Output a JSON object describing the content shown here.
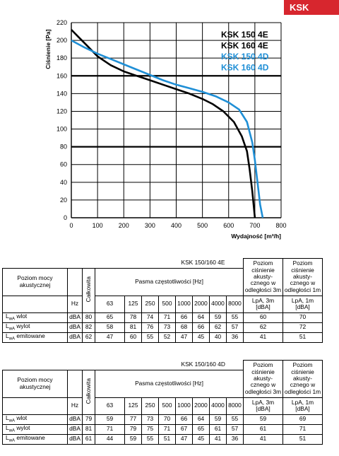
{
  "header": {
    "badge": "KSK"
  },
  "chart_data": {
    "type": "line",
    "xlabel": "Wydajność [m³/h]",
    "ylabel": "Ciśnienie [Pa]",
    "xlim": [
      0,
      800
    ],
    "ylim": [
      0,
      220
    ],
    "xticks": [
      "0",
      "100",
      "200",
      "300",
      "400",
      "500",
      "600",
      "700",
      "800"
    ],
    "yticks": [
      "0",
      "20",
      "40",
      "60",
      "80",
      "100",
      "120",
      "140",
      "160",
      "180",
      "200",
      "220"
    ],
    "grid": true,
    "legend_position": "top-right",
    "series": [
      {
        "name": "KSK 150 4E",
        "color": "#000000",
        "points": [
          [
            0,
            212
          ],
          [
            30,
            203
          ],
          [
            60,
            194
          ],
          [
            100,
            182
          ],
          [
            150,
            172
          ],
          [
            200,
            165
          ],
          [
            250,
            160
          ],
          [
            300,
            155
          ],
          [
            350,
            150
          ],
          [
            400,
            145
          ],
          [
            450,
            140
          ],
          [
            500,
            134
          ],
          [
            540,
            128
          ],
          [
            580,
            120
          ],
          [
            620,
            108
          ],
          [
            650,
            92
          ],
          [
            670,
            75
          ],
          [
            680,
            55
          ],
          [
            690,
            30
          ],
          [
            700,
            0
          ]
        ]
      },
      {
        "name": "KSK 160 4E",
        "color": "#000000",
        "points": []
      },
      {
        "name": "KSK 150 4D",
        "color": "#1f8fd6",
        "points": [
          [
            0,
            200
          ],
          [
            50,
            192
          ],
          [
            100,
            185
          ],
          [
            150,
            179
          ],
          [
            200,
            173
          ],
          [
            250,
            167
          ],
          [
            300,
            161
          ],
          [
            350,
            155
          ],
          [
            400,
            150
          ],
          [
            450,
            146
          ],
          [
            500,
            142
          ],
          [
            550,
            137
          ],
          [
            600,
            130
          ],
          [
            640,
            122
          ],
          [
            670,
            108
          ],
          [
            690,
            85
          ],
          [
            700,
            65
          ],
          [
            710,
            40
          ],
          [
            720,
            15
          ],
          [
            730,
            0
          ]
        ]
      },
      {
        "name": "KSK 160 4D",
        "color": "#1f8fd6",
        "points": []
      }
    ]
  },
  "tables": [
    {
      "title": "KSK 150/160 4E",
      "header": {
        "row_label": "Poziom mocy akustycznej",
        "total": "Całkowita",
        "bands_label": "Pasma częstotliwości [Hz]",
        "pressure3": "Poziom ciśnienie akusty-cznego w odległości 3m",
        "pressure1": "Poziom ciśnienie akusty-cznego w odległości 1m",
        "hz": "Hz",
        "bands": [
          "63",
          "125",
          "250",
          "500",
          "1000",
          "2000",
          "4000",
          "8000"
        ],
        "lpa3": "LpA, 3m [dBA]",
        "lpa1": "LpA, 1m [dBA]"
      },
      "rows": [
        {
          "label": "wlot",
          "unit": "dBA",
          "total": "80",
          "bands": [
            "65",
            "78",
            "74",
            "71",
            "66",
            "64",
            "59",
            "55"
          ],
          "p3": "60",
          "p1": "70"
        },
        {
          "label": "wylot",
          "unit": "dBA",
          "total": "82",
          "bands": [
            "58",
            "81",
            "76",
            "73",
            "68",
            "66",
            "62",
            "57"
          ],
          "p3": "62",
          "p1": "72"
        },
        {
          "label": "emitowane",
          "unit": "dBA",
          "total": "62",
          "bands": [
            "47",
            "60",
            "55",
            "52",
            "47",
            "45",
            "40",
            "36"
          ],
          "p3": "41",
          "p1": "51"
        }
      ]
    },
    {
      "title": "KSK 150/160 4D",
      "header": {
        "row_label": "Poziom mocy akustycznej",
        "total": "Całkowita",
        "bands_label": "Pasma częstotliwości [Hz]",
        "pressure3": "Poziom ciśnienie akusty-cznego w odległości 3m",
        "pressure1": "Poziom ciśnienie akusty-cznego w odległości 1m",
        "hz": "Hz",
        "bands": [
          "63",
          "125",
          "250",
          "500",
          "1000",
          "2000",
          "4000",
          "8000"
        ],
        "lpa3": "LpA, 3m [dBA]",
        "lpa1": "LpA, 1m [dBA]"
      },
      "rows": [
        {
          "label": "wlot",
          "unit": "dBA",
          "total": "79",
          "bands": [
            "59",
            "77",
            "73",
            "70",
            "66",
            "64",
            "59",
            "55"
          ],
          "p3": "59",
          "p1": "69"
        },
        {
          "label": "wylot",
          "unit": "dBA",
          "total": "81",
          "bands": [
            "71",
            "79",
            "75",
            "71",
            "67",
            "65",
            "61",
            "57"
          ],
          "p3": "61",
          "p1": "71"
        },
        {
          "label": "emitowane",
          "unit": "dBA",
          "total": "61",
          "bands": [
            "44",
            "59",
            "55",
            "51",
            "47",
            "45",
            "41",
            "36"
          ],
          "p3": "41",
          "p1": "51"
        }
      ]
    }
  ]
}
